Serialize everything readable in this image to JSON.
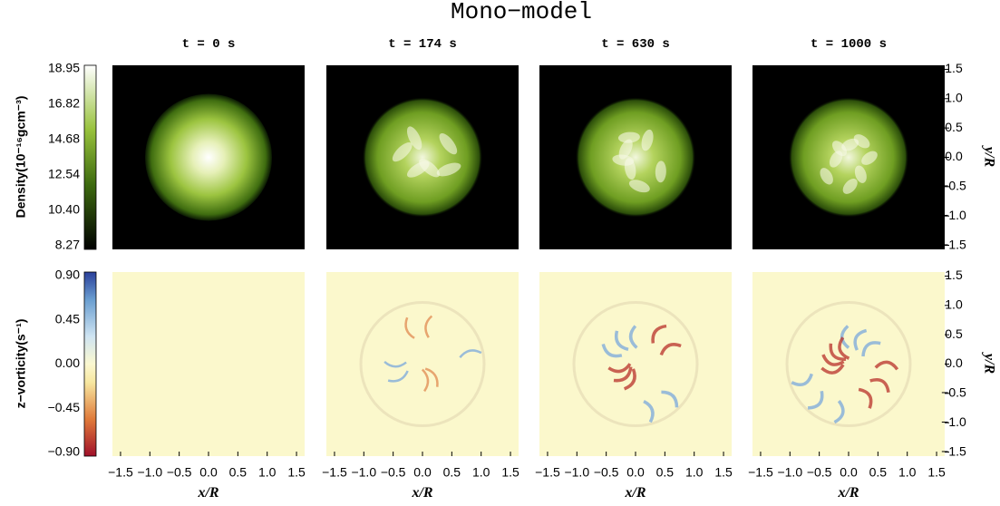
{
  "figure": {
    "title": "Mono−model",
    "panel_titles": [
      "t = 0 s",
      "t = 174 s",
      "t = 630 s",
      "t = 1000 s"
    ],
    "density_colorbar": {
      "label": "Density(10⁻¹⁶gcm⁻³)",
      "ticks": [
        "18.95",
        "16.82",
        "14.68",
        "12.54",
        "10.40",
        "8.27"
      ]
    },
    "vorticity_colorbar": {
      "label": "z−vorticity(s⁻¹)",
      "ticks": [
        "0.90",
        "0.45",
        "0.00",
        "−0.45",
        "−0.90"
      ]
    },
    "y_axis": {
      "label": "y/R",
      "ticks": [
        "1.5",
        "1.0",
        "0.5",
        "0.0",
        "−0.5",
        "−1.0",
        "−1.5"
      ]
    },
    "x_axis": {
      "label": "x/R",
      "ticks": [
        "−1.5",
        "−1.0",
        "−0.5",
        "0.0",
        "0.5",
        "1.0",
        "1.5"
      ]
    }
  }
}
